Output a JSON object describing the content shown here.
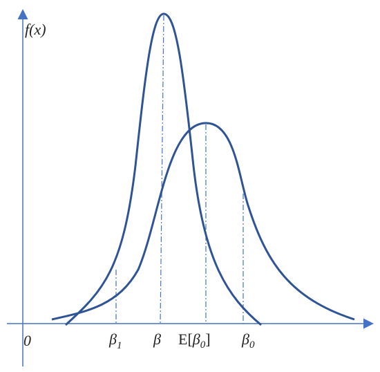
{
  "axis": {
    "y_label": "f(x)",
    "origin": "0"
  },
  "labels": [
    {
      "symbol": "β",
      "sub": "1"
    },
    {
      "symbol": "β"
    },
    {
      "prefix": "E[",
      "symbol": "β",
      "sub": "0",
      "suffix": "]"
    },
    {
      "symbol": "β",
      "sub": "0"
    }
  ]
}
